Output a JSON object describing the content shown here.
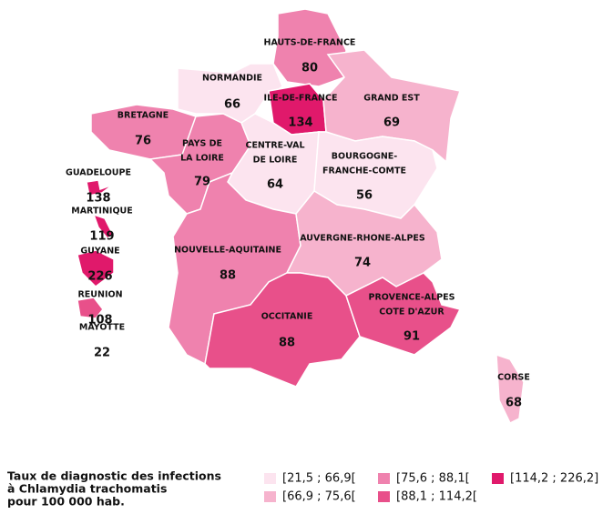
{
  "map": {
    "regions": [
      {
        "name": [
          "HAUTS-DE-FRANCE"
        ],
        "value": 80,
        "color": "#ef82ae"
      },
      {
        "name": [
          "NORMANDIE"
        ],
        "value": 66,
        "color": "#fce4ef"
      },
      {
        "name": [
          "ILE-DE-FRANCE"
        ],
        "value": 134,
        "color": "#e0196b"
      },
      {
        "name": [
          "GRAND EST"
        ],
        "value": 69,
        "color": "#f6b3cd"
      },
      {
        "name": [
          "BRETAGNE"
        ],
        "value": 76,
        "color": "#ef82ae"
      },
      {
        "name": [
          "PAYS DE",
          "LA LOIRE"
        ],
        "value": 79,
        "color": "#ef82ae"
      },
      {
        "name": [
          "CENTRE-VAL",
          "DE LOIRE"
        ],
        "value": 64,
        "color": "#fce4ef"
      },
      {
        "name": [
          "BOURGOGNE-",
          "FRANCHE-COMTE"
        ],
        "value": 56,
        "color": "#fce4ef"
      },
      {
        "name": [
          "NOUVELLE-AQUITAINE"
        ],
        "value": 88,
        "color": "#ef82ae"
      },
      {
        "name": [
          "AUVERGNE-RHONE-ALPES"
        ],
        "value": 74,
        "color": "#f6b3cd"
      },
      {
        "name": [
          "OCCITANIE"
        ],
        "value": 88,
        "color": "#e8508a"
      },
      {
        "name": [
          "PROVENCE-ALPES",
          "COTE D'AZUR"
        ],
        "value": 91,
        "color": "#e8508a"
      },
      {
        "name": [
          "CORSE"
        ],
        "value": 68,
        "color": "#f6b3cd"
      },
      {
        "name": [
          "GUADELOUPE"
        ],
        "value": 138,
        "color": "#e0196b"
      },
      {
        "name": [
          "MARTINIQUE"
        ],
        "value": 119,
        "color": "#e0196b"
      },
      {
        "name": [
          "GUYANE"
        ],
        "value": 226,
        "color": "#e0196b"
      },
      {
        "name": [
          "REUNION"
        ],
        "value": 108,
        "color": "#e8508a"
      },
      {
        "name": [
          "MAYOTTE"
        ],
        "value": 22,
        "color": "#fce4ef"
      }
    ],
    "legend": {
      "title": [
        "Taux de diagnostic des infections",
        " à Chlamydia trachomatis",
        "pour 100 000 hab."
      ],
      "classes": [
        {
          "label": "[21,5 ; 66,9[",
          "color": "#fce4ef"
        },
        {
          "label": "[66,9 ; 75,6[",
          "color": "#f6b3cd"
        },
        {
          "label": "[75,6 ; 88,1[",
          "color": "#ef82ae"
        },
        {
          "label": "[88,1 ; 114,2[",
          "color": "#e8508a"
        },
        {
          "label": "[114,2 ; 226,2]",
          "color": "#e0196b"
        }
      ]
    }
  }
}
